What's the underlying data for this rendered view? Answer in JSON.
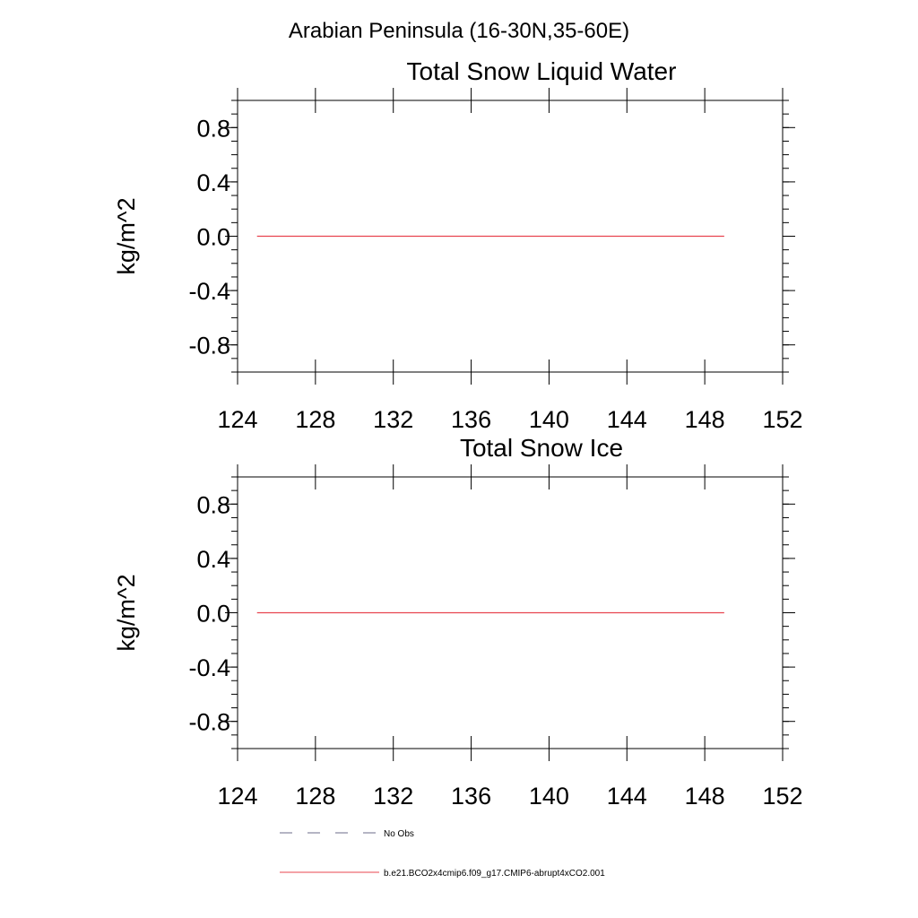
{
  "figure": {
    "title": "Arabian Peninsula (16-30N,35-60E)"
  },
  "chart_data": [
    {
      "type": "line",
      "title": "Total Snow Liquid Water",
      "xlabel": "",
      "ylabel": "kg/m^2",
      "xlim": [
        124,
        152
      ],
      "ylim": [
        -1.0,
        1.0
      ],
      "x_ticks": [
        124,
        128,
        132,
        136,
        140,
        144,
        148,
        152
      ],
      "x_tick_labels": [
        "124",
        "128",
        "132",
        "136",
        "140",
        "144",
        "148",
        "152"
      ],
      "y_ticks": [
        0.8,
        0.4,
        0.0,
        -0.4,
        -0.8
      ],
      "y_tick_labels": [
        "0.8",
        "0.4",
        "0.0",
        "-0.4",
        "-0.8"
      ],
      "grid": false,
      "series": [
        {
          "name": "b.e21.BCO2x4cmip6.f09_g17.CMIP6-abrupt4xCO2.001",
          "color": "#e8444f",
          "x": [
            125,
            149
          ],
          "y": [
            0.0,
            0.0
          ]
        }
      ]
    },
    {
      "type": "line",
      "title": "Total Snow Ice",
      "xlabel": "",
      "ylabel": "kg/m^2",
      "xlim": [
        124,
        152
      ],
      "ylim": [
        -1.0,
        1.0
      ],
      "x_ticks": [
        124,
        128,
        132,
        136,
        140,
        144,
        148,
        152
      ],
      "x_tick_labels": [
        "124",
        "128",
        "132",
        "136",
        "140",
        "144",
        "148",
        "152"
      ],
      "y_ticks": [
        0.8,
        0.4,
        0.0,
        -0.4,
        -0.8
      ],
      "y_tick_labels": [
        "0.8",
        "0.4",
        "0.0",
        "-0.4",
        "-0.8"
      ],
      "grid": false,
      "series": [
        {
          "name": "b.e21.BCO2x4cmip6.f09_g17.CMIP6-abrupt4xCO2.001",
          "color": "#e8444f",
          "x": [
            125,
            149
          ],
          "y": [
            0.0,
            0.0
          ]
        }
      ]
    }
  ],
  "legend": {
    "placement": "bottom-center",
    "items": [
      {
        "label": "No Obs",
        "color": "#6b6b8a",
        "style": "dashed"
      },
      {
        "label": "b.e21.BCO2x4cmip6.f09_g17.CMIP6-abrupt4xCO2.001",
        "color": "#e8444f",
        "style": "solid"
      }
    ]
  }
}
